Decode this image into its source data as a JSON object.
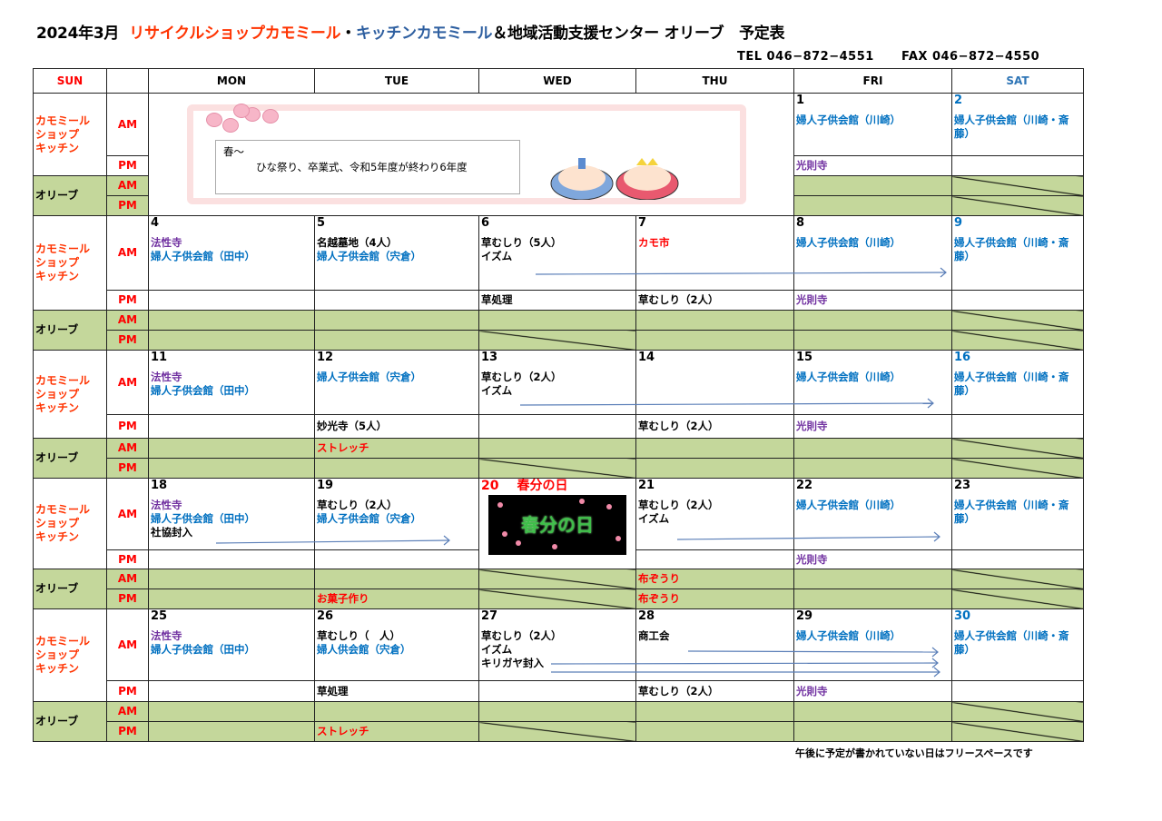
{
  "title": {
    "year_month": "2024年3月",
    "part1": "リサイクルショップカモミール",
    "sep": "・",
    "part2": "キッチンカモミール",
    "part3": "＆地域活動支援センター オリーブ　予定表",
    "colors": {
      "part1": "#ff3300",
      "part2": "#2e5fa0",
      "part3": "#000000"
    }
  },
  "contact": {
    "tel": "TEL 046−872−4551",
    "fax": "FAX 046−872−4550"
  },
  "headers": [
    {
      "t": "SUN",
      "c": "#ff0000"
    },
    {
      "t": "",
      "c": "#000"
    },
    {
      "t": "MON",
      "c": "#000"
    },
    {
      "t": "TUE",
      "c": "#000"
    },
    {
      "t": "WED",
      "c": "#000"
    },
    {
      "t": "THU",
      "c": "#000"
    },
    {
      "t": "FRI",
      "c": "#000"
    },
    {
      "t": "SAT",
      "c": "#2e75b6"
    }
  ],
  "labels": {
    "kitchen": "カモミール\nショップ\nキッチン",
    "olive": "オリーブ",
    "am": "AM",
    "pm": "PM"
  },
  "colors": {
    "purple": "#7030a0",
    "blue": "#0070c0",
    "red": "#ff0000",
    "black": "#000000",
    "green": "#c4d79b"
  },
  "banner": {
    "line1": "春～",
    "line2": "ひな祭り、卒業式、令和5年度が終わり6年度",
    "icons": [
      "plum-blossom-icon",
      "hina-dolls-icon"
    ]
  },
  "holiday": {
    "date": "20",
    "name": "春分の日",
    "image_text": "春分の日"
  },
  "weeks": [
    {
      "banner": true,
      "days": [
        null,
        null,
        null,
        null,
        {
          "date": "1",
          "dc": "black",
          "am": [
            {
              "t": "婦人子供会館（川崎）",
              "c": "blue"
            }
          ],
          "pm": [
            {
              "t": "光則寺",
              "c": "purple"
            }
          ]
        },
        {
          "date": "2",
          "dc": "blue",
          "am": [
            {
              "t": "婦人子供会館（川崎・斎藤）",
              "c": "blue"
            }
          ],
          "pm": [],
          "sa": true,
          "sp": true
        }
      ]
    },
    {
      "days": [
        {
          "date": "4",
          "dc": "black",
          "am": [
            {
              "t": "法性寺",
              "c": "purple"
            },
            {
              "t": "婦人子供会館（田中）",
              "c": "blue"
            }
          ],
          "pm": []
        },
        {
          "date": "5",
          "dc": "black",
          "am": [
            {
              "t": "名越墓地（4人）",
              "c": "black"
            },
            {
              "t": "婦人子供会館（宍倉）",
              "c": "blue"
            }
          ],
          "pm": []
        },
        {
          "date": "6",
          "dc": "black",
          "am": [
            {
              "t": "草むしり（5人）",
              "c": "black"
            },
            {
              "t": "イズム",
              "c": "black"
            }
          ],
          "pm": [
            {
              "t": "草処理",
              "c": "black"
            }
          ],
          "sp": true
        },
        {
          "date": "7",
          "dc": "black",
          "am": [
            {
              "t": "カモ市",
              "c": "red"
            }
          ],
          "pm": [
            {
              "t": "草むしり（2人）",
              "c": "black"
            }
          ]
        },
        {
          "date": "8",
          "dc": "black",
          "am": [
            {
              "t": "婦人子供会館（川崎）",
              "c": "blue"
            }
          ],
          "pm": [
            {
              "t": "光則寺",
              "c": "purple"
            }
          ]
        },
        {
          "date": "9",
          "dc": "blue",
          "am": [
            {
              "t": "婦人子供会館（川崎・斎藤）",
              "c": "blue"
            }
          ],
          "pm": [],
          "sa": true,
          "sp": true
        }
      ]
    },
    {
      "days": [
        {
          "date": "11",
          "dc": "black",
          "am": [
            {
              "t": "法性寺",
              "c": "purple"
            },
            {
              "t": "婦人子供会館（田中）",
              "c": "blue"
            }
          ],
          "pm": []
        },
        {
          "date": "12",
          "dc": "black",
          "am": [
            {
              "t": "婦人子供会館（宍倉）",
              "c": "blue"
            }
          ],
          "pm": [
            {
              "t": "妙光寺（5人）",
              "c": "black"
            }
          ],
          "oa": {
            "t": "ストレッチ",
            "c": "red"
          }
        },
        {
          "date": "13",
          "dc": "black",
          "am": [
            {
              "t": "草むしり（2人）",
              "c": "black"
            },
            {
              "t": "イズム",
              "c": "black"
            }
          ],
          "pm": [],
          "sp": true
        },
        {
          "date": "14",
          "dc": "black",
          "am": [],
          "pm": [
            {
              "t": "草むしり（2人）",
              "c": "black"
            }
          ]
        },
        {
          "date": "15",
          "dc": "black",
          "am": [
            {
              "t": "婦人子供会館（川崎）",
              "c": "blue"
            }
          ],
          "pm": [
            {
              "t": "光則寺",
              "c": "purple"
            }
          ]
        },
        {
          "date": "16",
          "dc": "blue",
          "am": [
            {
              "t": "婦人子供会館（川崎・斎藤）",
              "c": "blue"
            }
          ],
          "pm": [],
          "sa": true,
          "sp": true
        }
      ]
    },
    {
      "days": [
        {
          "date": "18",
          "dc": "black",
          "am": [
            {
              "t": "法性寺",
              "c": "purple"
            },
            {
              "t": "婦人子供会館（田中）",
              "c": "blue"
            },
            {
              "t": "社協封入",
              "c": "black"
            }
          ],
          "pm": []
        },
        {
          "date": "19",
          "dc": "black",
          "am": [
            {
              "t": "草むしり（2人）",
              "c": "black"
            },
            {
              "t": "婦人子供会館（宍倉）",
              "c": "blue"
            }
          ],
          "pm": [],
          "op": {
            "t": "お菓子作り",
            "c": "red"
          }
        },
        {
          "holiday": true,
          "sa": true,
          "sp": true
        },
        {
          "date": "21",
          "dc": "black",
          "am": [
            {
              "t": "草むしり（2人）",
              "c": "black"
            },
            {
              "t": "イズム",
              "c": "black"
            }
          ],
          "pm": [],
          "oa": {
            "t": "布ぞうり",
            "c": "red"
          },
          "op": {
            "t": "布ぞうり",
            "c": "red"
          }
        },
        {
          "date": "22",
          "dc": "black",
          "am": [
            {
              "t": "婦人子供会館（川崎）",
              "c": "blue"
            }
          ],
          "pm": [
            {
              "t": "光則寺",
              "c": "purple"
            }
          ]
        },
        {
          "date": "23",
          "dc": "black",
          "am": [
            {
              "t": "婦人子供会館（川崎・斎藤）",
              "c": "blue"
            }
          ],
          "pm": [],
          "sa": true,
          "sp": true
        }
      ]
    },
    {
      "days": [
        {
          "date": "25",
          "dc": "black",
          "am": [
            {
              "t": "法性寺",
              "c": "purple"
            },
            {
              "t": "婦人子供会館（田中）",
              "c": "blue"
            }
          ],
          "pm": []
        },
        {
          "date": "26",
          "dc": "black",
          "am": [
            {
              "t": "草むしり（　人）",
              "c": "black"
            },
            {
              "t": "婦人供会館（宍倉）",
              "c": "blue"
            }
          ],
          "pm": [
            {
              "t": "草処理",
              "c": "black"
            }
          ],
          "op": {
            "t": "ストレッチ",
            "c": "red"
          }
        },
        {
          "date": "27",
          "dc": "black",
          "am": [
            {
              "t": "草むしり（2人）",
              "c": "black"
            },
            {
              "t": "イズム",
              "c": "black"
            },
            {
              "t": "キリガヤ封入",
              "c": "black"
            }
          ],
          "pm": [],
          "sp": true
        },
        {
          "date": "28",
          "dc": "black",
          "am": [
            {
              "t": "商工会",
              "c": "black"
            }
          ],
          "pm": [
            {
              "t": "草むしり（2人）",
              "c": "black"
            }
          ]
        },
        {
          "date": "29",
          "dc": "black",
          "am": [
            {
              "t": "婦人子供会館（川崎）",
              "c": "blue"
            }
          ],
          "pm": [
            {
              "t": "光則寺",
              "c": "purple"
            }
          ]
        },
        {
          "date": "30",
          "dc": "blue",
          "am": [
            {
              "t": "婦人子供会館（川崎・斎藤）",
              "c": "blue"
            }
          ],
          "pm": [],
          "sa": true,
          "sp": true
        }
      ]
    }
  ],
  "footer": "午後に予定が書かれていない日はフリースペースです"
}
